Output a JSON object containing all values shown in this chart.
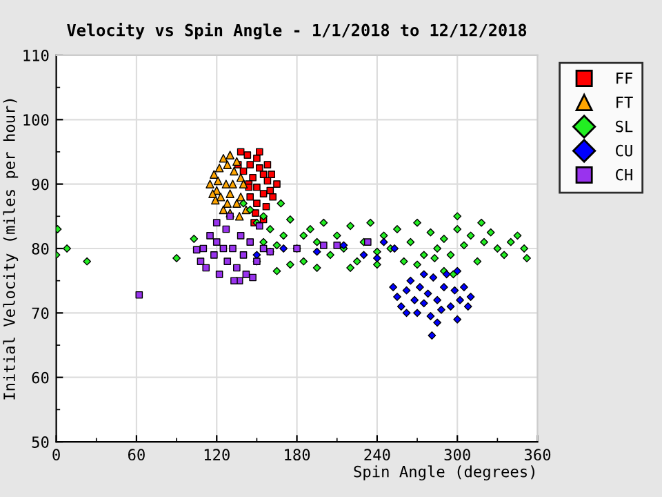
{
  "chart_data": {
    "type": "scatter",
    "title": "Velocity vs Spin Angle - 1/1/2018 to 12/12/2018",
    "xlabel": "Spin Angle (degrees)",
    "ylabel": "Initial Velocity (miles per hour)",
    "xlim": [
      0,
      360
    ],
    "ylim": [
      50,
      110
    ],
    "xticks": [
      0,
      60,
      120,
      180,
      240,
      300,
      360
    ],
    "yticks": [
      50,
      60,
      70,
      80,
      90,
      100,
      110
    ],
    "grid": true,
    "legend": "right",
    "series": [
      {
        "name": "FF",
        "color": "#ff0000",
        "marker": "square",
        "x": [
          138,
          143,
          150,
          136,
          145,
          152,
          155,
          140,
          147,
          158,
          165,
          160,
          144,
          150,
          155,
          145,
          162,
          150,
          157,
          149,
          155,
          148,
          158,
          152,
          161,
          144
        ],
        "values": [
          95,
          94.5,
          94,
          93,
          93,
          92.5,
          91.5,
          92,
          91,
          90.5,
          90,
          89,
          90,
          89.5,
          88.5,
          88,
          88,
          87,
          86.5,
          85.5,
          84.5,
          84,
          93,
          95,
          91.5,
          89.5
        ]
      },
      {
        "name": "FT",
        "color": "#ffa500",
        "marker": "triangle",
        "x": [
          115,
          118,
          120,
          122,
          125,
          128,
          130,
          133,
          135,
          138,
          140,
          127,
          123,
          119,
          130,
          135,
          125,
          130,
          138,
          142,
          117,
          132,
          128,
          137,
          121
        ],
        "values": [
          90,
          91.5,
          89,
          92.5,
          94,
          93,
          94.5,
          92,
          93.5,
          91,
          90,
          90,
          88,
          87.5,
          88.5,
          87,
          86,
          85.5,
          88,
          86,
          88.5,
          90,
          87,
          85,
          90.5
        ]
      },
      {
        "name": "SL",
        "color": "#22ee22",
        "marker": "diamond",
        "x": [
          0,
          1,
          8,
          23,
          90,
          103,
          165,
          140,
          145,
          155,
          168,
          150,
          160,
          170,
          175,
          180,
          185,
          190,
          195,
          200,
          205,
          210,
          215,
          220,
          225,
          230,
          235,
          240,
          245,
          250,
          255,
          260,
          265,
          270,
          275,
          280,
          283,
          285,
          290,
          295,
          300,
          300,
          305,
          310,
          315,
          318,
          320,
          325,
          330,
          335,
          340,
          345,
          350,
          352,
          150,
          160,
          175,
          195,
          220,
          240,
          290,
          297,
          270,
          185,
          165,
          155
        ],
        "values": [
          79,
          83,
          80,
          78,
          78.5,
          81.5,
          76.5,
          87,
          86,
          85,
          87,
          84,
          83,
          82,
          84.5,
          80,
          78,
          83,
          81,
          84,
          79,
          82,
          80,
          83.5,
          78,
          81,
          84,
          79.5,
          82,
          80,
          83,
          78,
          81,
          84,
          79,
          82.5,
          78.5,
          80,
          81.5,
          79,
          85,
          83,
          80.5,
          82,
          78,
          84,
          81,
          82.5,
          80,
          79,
          81,
          82,
          80,
          78.5,
          78,
          79.5,
          77.5,
          77,
          77,
          77.5,
          76.5,
          76,
          77.5,
          82,
          80.5,
          81
        ]
      },
      {
        "name": "CU",
        "color": "#0000ff",
        "marker": "diamond",
        "x": [
          150,
          170,
          195,
          215,
          230,
          245,
          253,
          240,
          252,
          255,
          258,
          262,
          265,
          268,
          270,
          272,
          275,
          278,
          280,
          282,
          285,
          288,
          290,
          292,
          295,
          298,
          300,
          302,
          305,
          308,
          310,
          300,
          285,
          281,
          262,
          275
        ],
        "values": [
          79,
          80,
          79.5,
          80.5,
          79,
          81,
          80,
          78.5,
          74,
          72.5,
          71,
          73.5,
          75,
          72,
          70,
          74,
          71.5,
          73,
          69.5,
          75.5,
          72,
          70.5,
          74,
          76,
          71,
          73.5,
          69,
          72,
          74,
          71,
          72.5,
          76.5,
          68.5,
          66.5,
          70,
          76
        ]
      },
      {
        "name": "CH",
        "color": "#9933ee",
        "marker": "square",
        "x": [
          62,
          105,
          108,
          110,
          112,
          115,
          118,
          120,
          122,
          125,
          127,
          128,
          130,
          132,
          135,
          137,
          138,
          140,
          142,
          145,
          147,
          150,
          152,
          155,
          160,
          180,
          200,
          210,
          233,
          120,
          133
        ],
        "values": [
          72.8,
          79.8,
          78,
          80,
          77,
          82,
          79,
          81,
          76,
          80,
          83,
          78,
          85,
          80,
          77,
          75,
          82,
          79,
          76,
          81,
          75.5,
          78,
          83.5,
          80,
          79.5,
          80,
          80.5,
          80.5,
          81,
          84,
          75
        ]
      }
    ]
  }
}
